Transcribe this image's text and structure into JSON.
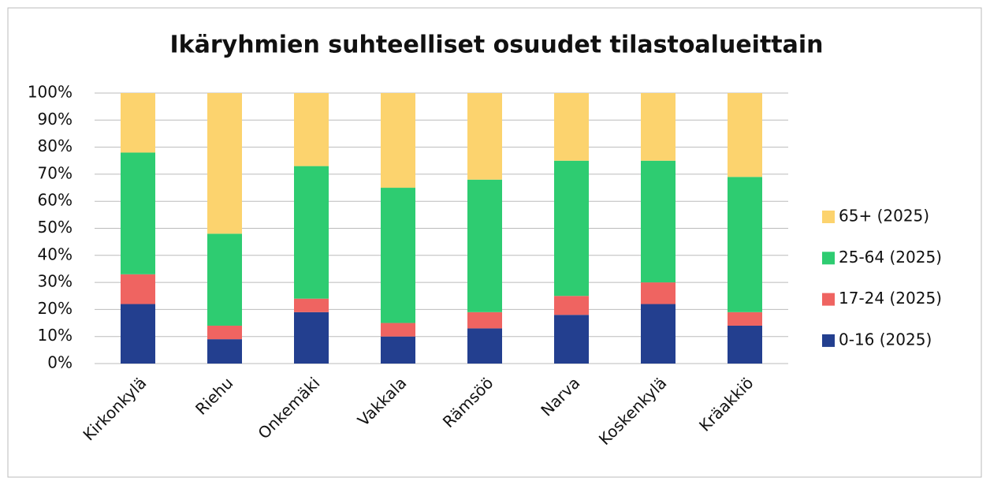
{
  "chart_data": {
    "type": "stacked_bar",
    "title": "Ikäryhmien suhteelliset osuudet tilastoalueittain",
    "categories": [
      "Kirkonkylä",
      "Riehu",
      "Onkemäki",
      "Vakkala",
      "Rämsöö",
      "Narva",
      "Koskenkylä",
      "Kräakkiö"
    ],
    "series": [
      {
        "name": "0-16 (2025)",
        "color": "#233f8f",
        "values": [
          22,
          9,
          19,
          10,
          13,
          18,
          22,
          14
        ]
      },
      {
        "name": "17-24 (2025)",
        "color": "#ef6461",
        "values": [
          11,
          5,
          5,
          5,
          6,
          7,
          8,
          5
        ]
      },
      {
        "name": "25-64 (2025)",
        "color": "#2ecc71",
        "values": [
          45,
          34,
          49,
          50,
          49,
          50,
          45,
          50
        ]
      },
      {
        "name": "65+ (2025)",
        "color": "#fcd36e",
        "values": [
          22,
          52,
          27,
          35,
          32,
          25,
          25,
          31
        ]
      }
    ],
    "ylim": [
      0,
      100
    ],
    "yticks": [
      {
        "value": 0,
        "label": "0%"
      },
      {
        "value": 10,
        "label": "10%"
      },
      {
        "value": 20,
        "label": "20%"
      },
      {
        "value": 30,
        "label": "30%"
      },
      {
        "value": 40,
        "label": "40%"
      },
      {
        "value": 50,
        "label": "50%"
      },
      {
        "value": 60,
        "label": "60%"
      },
      {
        "value": 70,
        "label": "70%"
      },
      {
        "value": 80,
        "label": "80%"
      },
      {
        "value": 90,
        "label": "90%"
      },
      {
        "value": 100,
        "label": "100%"
      }
    ],
    "grid": true,
    "legend": "right"
  }
}
